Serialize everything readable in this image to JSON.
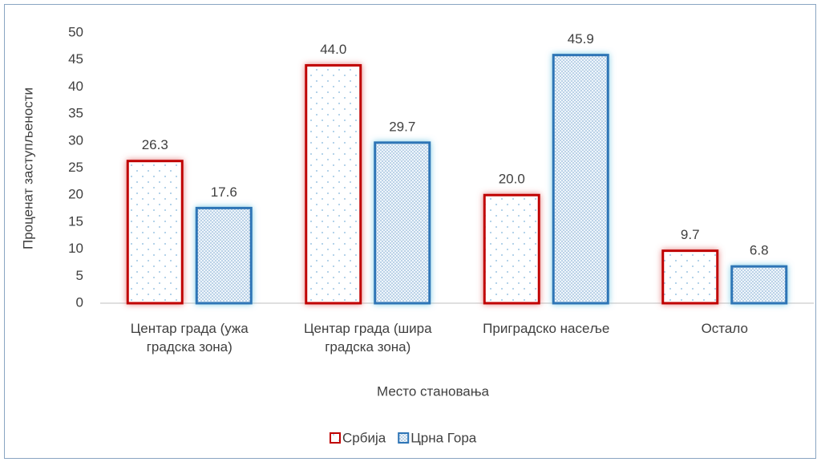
{
  "chart_data": {
    "type": "bar",
    "categories": [
      "Центар града (ужа градска зона)",
      "Центар града (шира градска зона)",
      "Приградско насеље",
      "Остало"
    ],
    "series": [
      {
        "name": "Србија",
        "color": "#c00000",
        "values": [
          26.3,
          44,
          20,
          9.7
        ],
        "value_labels": [
          "26.3",
          "44.0",
          "20.0",
          "9.7"
        ]
      },
      {
        "name": "Црна Гора",
        "color": "#2e75b6",
        "values": [
          17.6,
          29.7,
          45.9,
          6.8
        ],
        "value_labels": [
          "17.6",
          "29.7",
          "45.9",
          "6.8"
        ]
      }
    ],
    "x_label": "Место становања",
    "y_label": "Проценат заступљености",
    "ylim": [
      0,
      50
    ],
    "yticks": [
      0,
      5,
      10,
      15,
      20,
      25,
      30,
      35,
      40,
      45,
      50
    ],
    "grid": false,
    "legend": "bottom"
  }
}
